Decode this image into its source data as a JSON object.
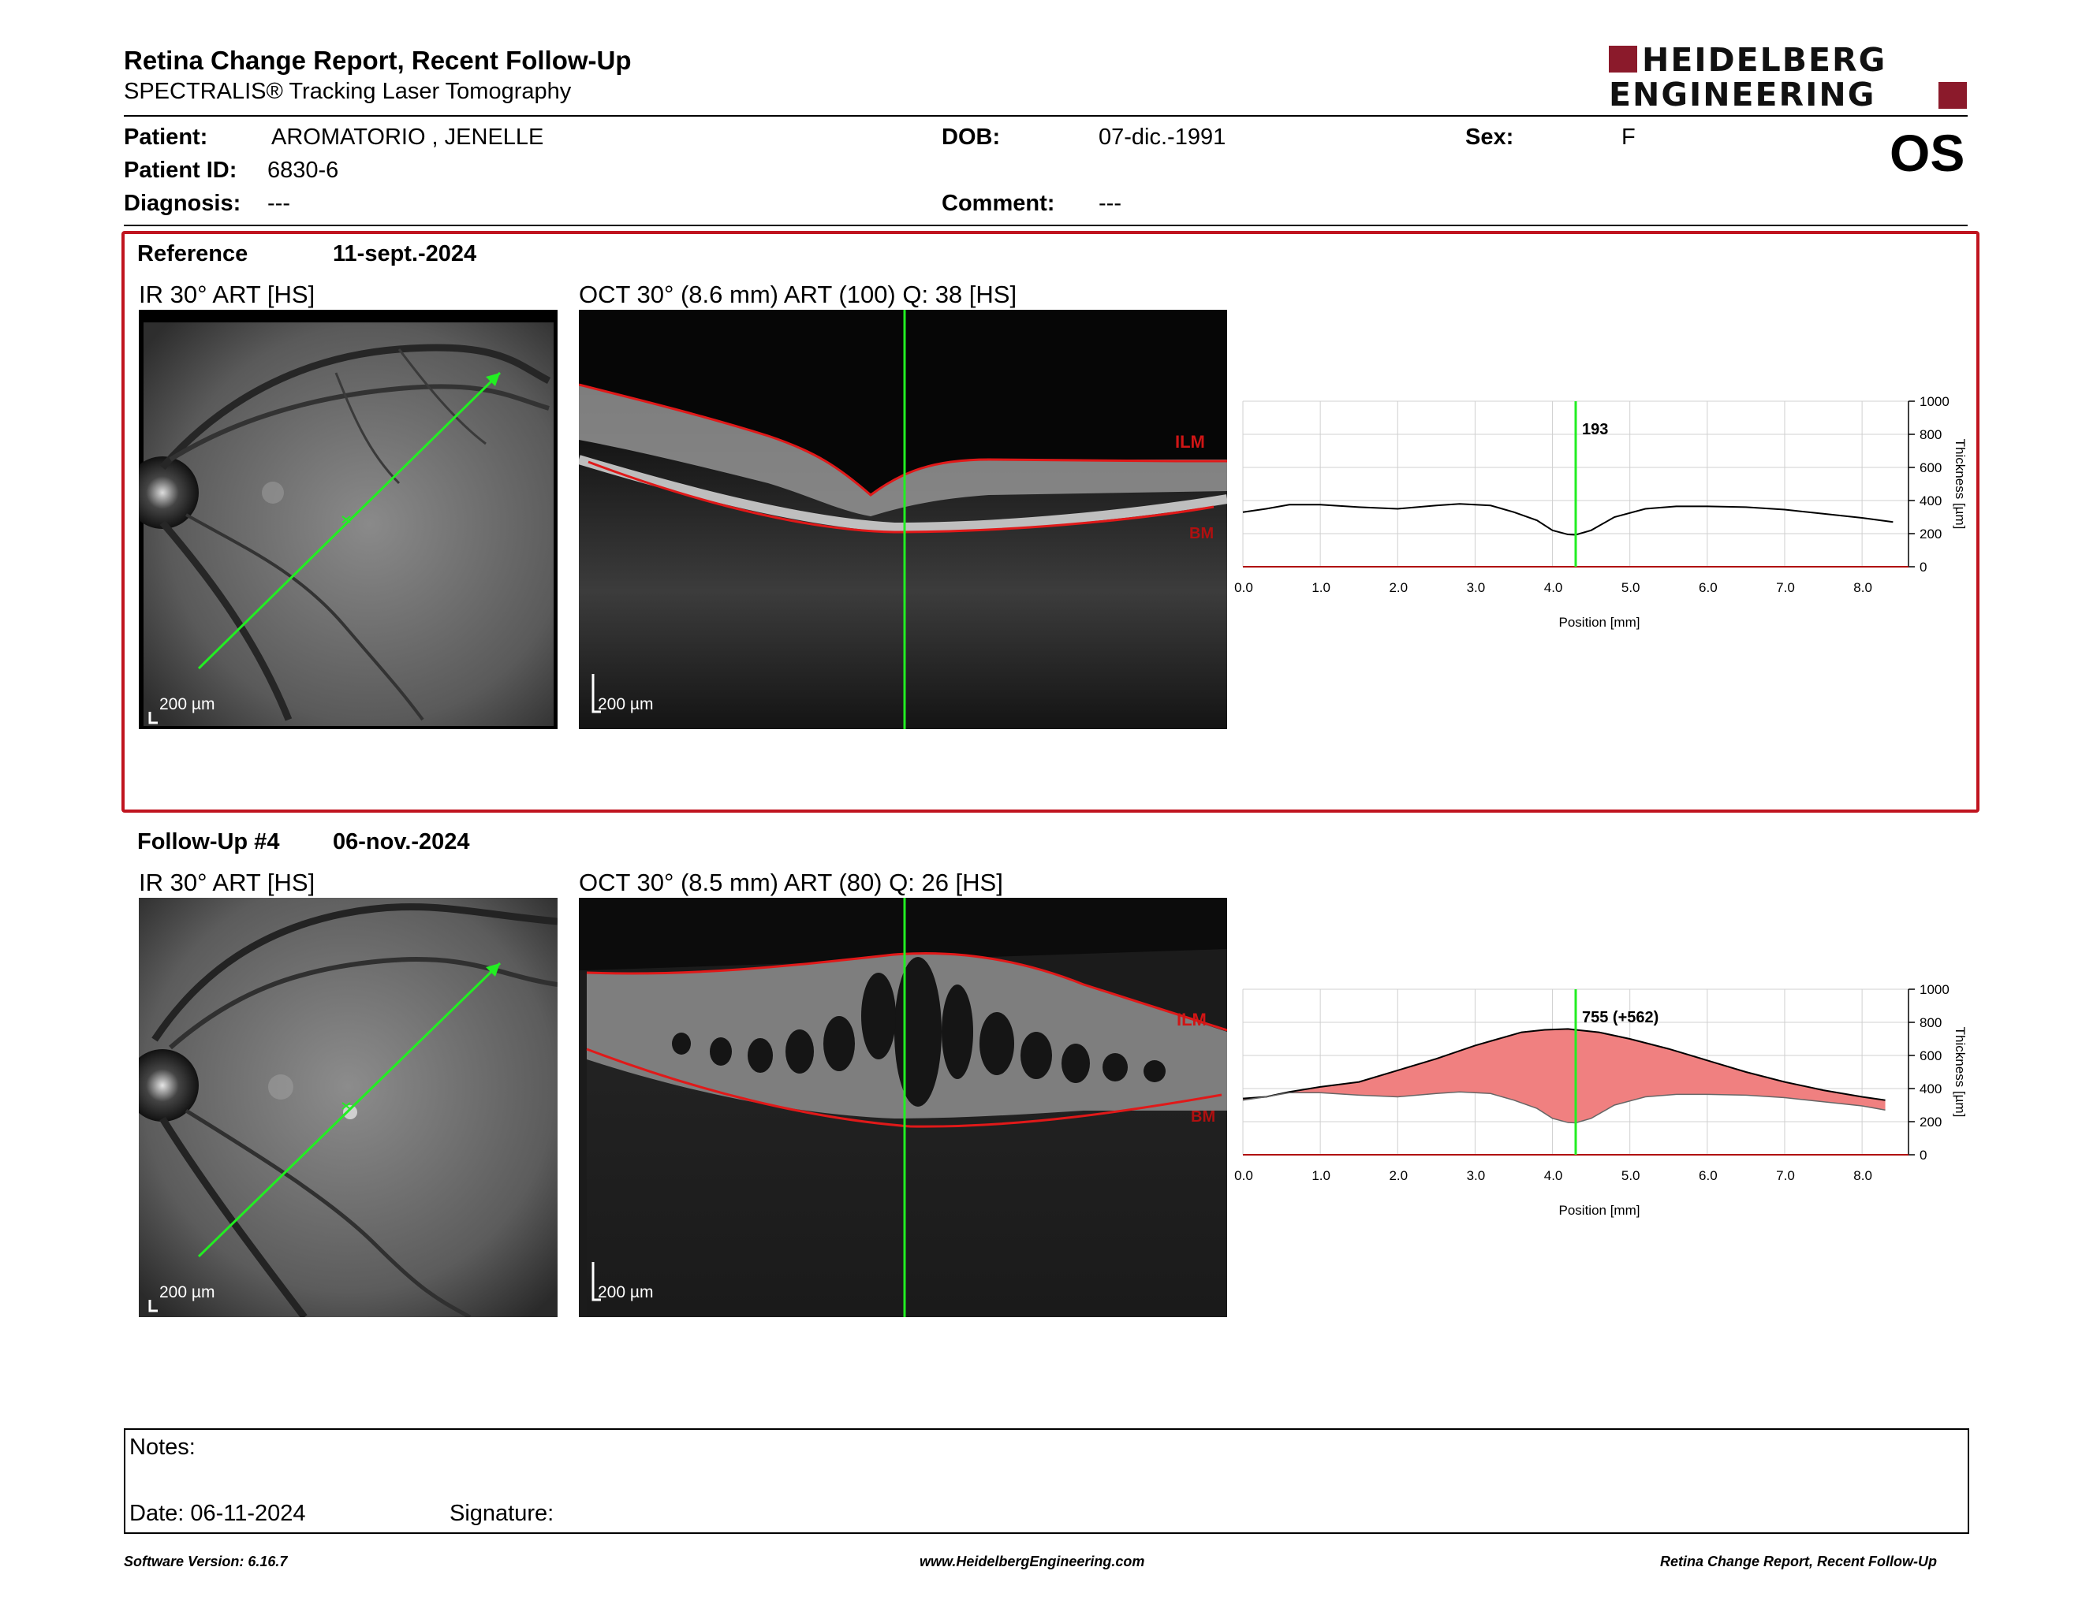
{
  "header": {
    "title": "Retina Change Report, Recent Follow-Up",
    "subtitle": "SPECTRALIS® Tracking Laser Tomography",
    "logo_line1": "HEIDELBERG",
    "logo_line2": "ENGINEERING",
    "eye": "OS"
  },
  "patient": {
    "patient_label": "Patient:",
    "patient_value": "AROMATORIO , JENELLE",
    "id_label": "Patient ID:",
    "id_value": "6830-6",
    "diagnosis_label": "Diagnosis:",
    "diagnosis_value": "---",
    "dob_label": "DOB:",
    "dob_value": "07-dic.-1991",
    "comment_label": "Comment:",
    "comment_value": "---",
    "sex_label": "Sex:",
    "sex_value": "F"
  },
  "reference": {
    "label": "Reference",
    "date": "11-sept.-2024",
    "ir_title": "IR 30° ART [HS]",
    "oct_title": "OCT 30° (8.6 mm) ART (100) Q: 38 [HS]",
    "scale": "200 µm",
    "ilm": "ILM",
    "bm": "BM"
  },
  "followup": {
    "label": "Follow-Up #4",
    "date": "06-nov.-2024",
    "ir_title": "IR 30° ART [HS]",
    "oct_title": "OCT 30° (8.5 mm) ART (80) Q: 26 [HS]",
    "scale": "200 µm",
    "ilm": "ILM",
    "bm": "BM"
  },
  "chart_data": [
    {
      "type": "line",
      "xlabel": "Position [mm]",
      "ylabel": "Thickness [µm]",
      "xlim": [
        0,
        8.6
      ],
      "ylim": [
        0,
        1000
      ],
      "xticks": [
        "0.0",
        "1.0",
        "2.0",
        "3.0",
        "4.0",
        "5.0",
        "6.0",
        "7.0",
        "8.0"
      ],
      "yticks": [
        "0",
        "200",
        "400",
        "600",
        "800",
        "1000"
      ],
      "cursor_x": 4.3,
      "cursor_label": "193",
      "series": [
        {
          "x": [
            0,
            0.3,
            0.6,
            1.0,
            1.5,
            2.0,
            2.5,
            2.8,
            3.2,
            3.5,
            3.8,
            4.0,
            4.2,
            4.3,
            4.5,
            4.8,
            5.2,
            5.6,
            6.0,
            6.5,
            7.0,
            7.5,
            8.0,
            8.4
          ],
          "values": [
            330,
            350,
            375,
            375,
            360,
            350,
            370,
            380,
            370,
            330,
            280,
            220,
            195,
            193,
            220,
            300,
            350,
            365,
            365,
            360,
            345,
            320,
            295,
            270
          ]
        }
      ]
    },
    {
      "type": "area",
      "xlabel": "Position [mm]",
      "ylabel": "Thickness [µm]",
      "xlim": [
        0,
        8.6
      ],
      "ylim": [
        0,
        1000
      ],
      "xticks": [
        "0.0",
        "1.0",
        "2.0",
        "3.0",
        "4.0",
        "5.0",
        "6.0",
        "7.0",
        "8.0"
      ],
      "yticks": [
        "0",
        "200",
        "400",
        "600",
        "800",
        "1000"
      ],
      "cursor_x": 4.3,
      "cursor_label": "755 (+562)",
      "fill_color": "#f08080",
      "series": [
        {
          "x": [
            0,
            0.3,
            0.6,
            1.0,
            1.5,
            2.0,
            2.5,
            3.0,
            3.3,
            3.6,
            3.9,
            4.2,
            4.3,
            4.6,
            5.0,
            5.5,
            6.0,
            6.5,
            7.0,
            7.5,
            8.0,
            8.3
          ],
          "values": [
            340,
            350,
            380,
            410,
            440,
            510,
            580,
            660,
            700,
            740,
            755,
            760,
            755,
            740,
            700,
            640,
            570,
            500,
            440,
            390,
            350,
            330
          ]
        },
        {
          "x": [
            0,
            0.3,
            0.6,
            1.0,
            1.5,
            2.0,
            2.5,
            2.8,
            3.2,
            3.5,
            3.8,
            4.0,
            4.2,
            4.3,
            4.5,
            4.8,
            5.2,
            5.6,
            6.0,
            6.5,
            7.0,
            7.5,
            8.0,
            8.3
          ],
          "values": [
            330,
            350,
            375,
            375,
            360,
            350,
            370,
            380,
            370,
            330,
            280,
            220,
            195,
            193,
            220,
            300,
            350,
            365,
            365,
            360,
            345,
            320,
            295,
            270
          ]
        }
      ]
    }
  ],
  "notes": {
    "notes_label": "Notes:",
    "date_label": "Date: 06-11-2024",
    "signature_label": "Signature:"
  },
  "footer": {
    "software": "Software Version: 6.16.7",
    "website": "www.HeidelbergEngineering.com",
    "report": "Retina Change Report, Recent Follow-Up"
  }
}
